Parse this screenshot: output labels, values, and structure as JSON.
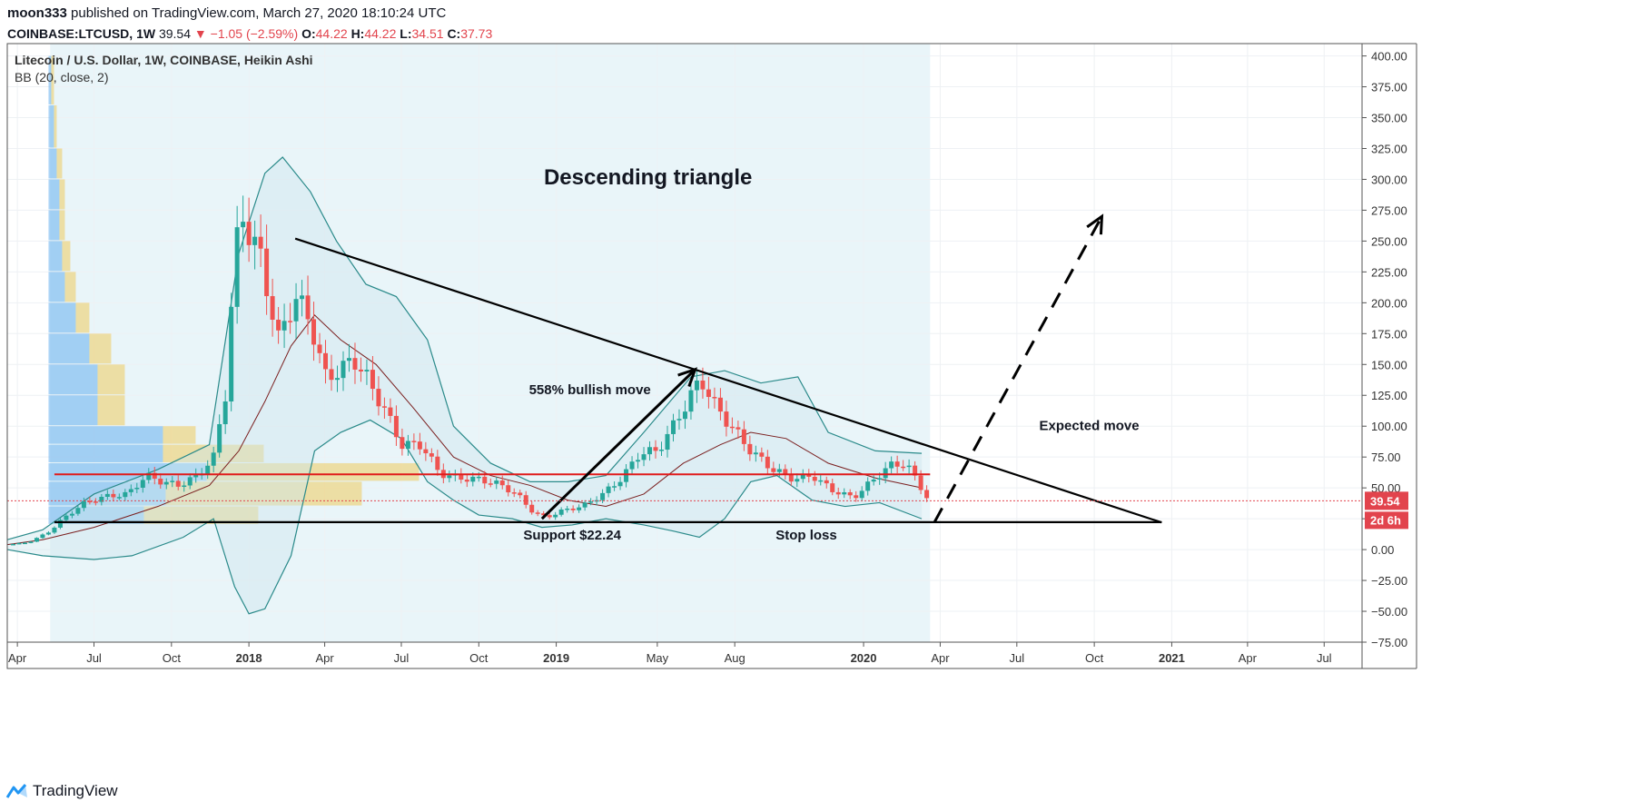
{
  "header": {
    "author": "moon333",
    "published": "published on TradingView.com, March 27, 2020 18:10:24 UTC",
    "symbol": "COINBASE:LTCUSD,",
    "interval": "1W",
    "last": "39.54",
    "change": "−1.05 (−2.59%)",
    "o_label": "O:",
    "o_val": "44.22",
    "h_label": "H:",
    "h_val": "44.22",
    "l_label": "L:",
    "l_val": "34.51",
    "c_label": "C:",
    "c_val": "37.73",
    "down_arrow": "▼"
  },
  "legend": {
    "title": "Litecoin / U.S. Dollar, 1W, COINBASE, Heikin Ashi",
    "indicator": "BB (20, close, 2)"
  },
  "footer": {
    "brand": "TradingView",
    "brand_icon": "tradingview-logo-icon"
  },
  "colors": {
    "up": "#26a69a",
    "down": "#ef5350",
    "bb_band": "#2a8a8a",
    "bb_basis": "#7a1f1f",
    "bb_fill": "#cfe6ee",
    "resistance": "#e01b1b",
    "shade": "#e3f2f8",
    "vp_blue": "#5aaaee",
    "vp_yellow": "#f0c850",
    "price_tag": "#e2444d"
  },
  "chart_data": {
    "type": "candlestick",
    "title": "Litecoin / U.S. Dollar, 1W, COINBASE, Heikin Ashi",
    "y_ticks": [
      "400.00",
      "375.00",
      "350.00",
      "325.00",
      "300.00",
      "275.00",
      "250.00",
      "225.00",
      "200.00",
      "175.00",
      "150.00",
      "125.00",
      "100.00",
      "75.00",
      "50.00",
      "25.00",
      "0.00",
      "−25.00",
      "−50.00",
      "−75.00"
    ],
    "ylim": [
      -75,
      410
    ],
    "x_ticks": [
      "Apr",
      "Jul",
      "Oct",
      "2018",
      "Apr",
      "Jul",
      "Oct",
      "2019",
      "May",
      "Aug",
      "2020",
      "Apr",
      "Jul",
      "Oct",
      "2021",
      "Apr",
      "Jul"
    ],
    "x_tick_dates": [
      "2017-04-01",
      "2017-07-01",
      "2017-10-01",
      "2018-01-01",
      "2018-04-01",
      "2018-07-01",
      "2018-10-01",
      "2019-01-01",
      "2019-05-01",
      "2019-08-01",
      "2020-01-01",
      "2020-04-01",
      "2020-07-01",
      "2020-10-01",
      "2021-01-01",
      "2021-04-01",
      "2021-07-01"
    ],
    "xlim": [
      "2017-03-20",
      "2021-08-15"
    ],
    "last_price_label": "39.54",
    "countdown_label": "2d 6h",
    "price_series": {
      "name": "LTCUSD Heikin Ashi (approximate weekly closes)",
      "points": [
        [
          "2017-03-20",
          4
        ],
        [
          "2017-04-15",
          6
        ],
        [
          "2017-05-10",
          15
        ],
        [
          "2017-05-25",
          25
        ],
        [
          "2017-06-20",
          38
        ],
        [
          "2017-07-15",
          43
        ],
        [
          "2017-08-10",
          45
        ],
        [
          "2017-09-01",
          60
        ],
        [
          "2017-09-20",
          55
        ],
        [
          "2017-10-10",
          52
        ],
        [
          "2017-11-01",
          60
        ],
        [
          "2017-11-20",
          75
        ],
        [
          "2017-12-05",
          130
        ],
        [
          "2017-12-15",
          240
        ],
        [
          "2017-12-25",
          270
        ],
        [
          "2018-01-15",
          235
        ],
        [
          "2018-02-05",
          170
        ],
        [
          "2018-02-25",
          205
        ],
        [
          "2018-03-15",
          185
        ],
        [
          "2018-04-01",
          140
        ],
        [
          "2018-04-20",
          145
        ],
        [
          "2018-05-05",
          155
        ],
        [
          "2018-05-20",
          140
        ],
        [
          "2018-06-10",
          115
        ],
        [
          "2018-07-01",
          85
        ],
        [
          "2018-07-25",
          85
        ],
        [
          "2018-08-15",
          62
        ],
        [
          "2018-09-05",
          58
        ],
        [
          "2018-10-01",
          57
        ],
        [
          "2018-10-25",
          53
        ],
        [
          "2018-11-15",
          45
        ],
        [
          "2018-12-05",
          30
        ],
        [
          "2018-12-20",
          26
        ],
        [
          "2019-01-10",
          32
        ],
        [
          "2019-02-01",
          35
        ],
        [
          "2019-02-25",
          45
        ],
        [
          "2019-03-20",
          58
        ],
        [
          "2019-04-10",
          78
        ],
        [
          "2019-05-01",
          80
        ],
        [
          "2019-05-20",
          100
        ],
        [
          "2019-06-10",
          125
        ],
        [
          "2019-06-22",
          138
        ],
        [
          "2019-07-10",
          115
        ],
        [
          "2019-07-30",
          98
        ],
        [
          "2019-08-20",
          80
        ],
        [
          "2019-09-15",
          65
        ],
        [
          "2019-10-10",
          57
        ],
        [
          "2019-11-01",
          60
        ],
        [
          "2019-11-25",
          48
        ],
        [
          "2019-12-20",
          42
        ],
        [
          "2020-01-10",
          55
        ],
        [
          "2020-02-01",
          68
        ],
        [
          "2020-02-20",
          70
        ],
        [
          "2020-03-05",
          55
        ],
        [
          "2020-03-20",
          38
        ]
      ]
    },
    "bollinger": {
      "name": "BB (20, close, 2)",
      "upper": [
        [
          "2017-03-20",
          8
        ],
        [
          "2017-05-01",
          16
        ],
        [
          "2017-07-01",
          45
        ],
        [
          "2017-09-15",
          65
        ],
        [
          "2017-11-15",
          85
        ],
        [
          "2017-12-20",
          240
        ],
        [
          "2018-01-20",
          305
        ],
        [
          "2018-02-10",
          318
        ],
        [
          "2018-03-15",
          290
        ],
        [
          "2018-04-15",
          250
        ],
        [
          "2018-05-20",
          215
        ],
        [
          "2018-06-25",
          205
        ],
        [
          "2018-08-01",
          170
        ],
        [
          "2018-09-01",
          100
        ],
        [
          "2018-10-15",
          70
        ],
        [
          "2018-12-01",
          55
        ],
        [
          "2019-01-15",
          55
        ],
        [
          "2019-03-01",
          60
        ],
        [
          "2019-04-15",
          95
        ],
        [
          "2019-06-10",
          140
        ],
        [
          "2019-07-20",
          145
        ],
        [
          "2019-09-01",
          135
        ],
        [
          "2019-10-15",
          140
        ],
        [
          "2019-11-20",
          95
        ],
        [
          "2020-01-15",
          80
        ],
        [
          "2020-03-10",
          78
        ]
      ],
      "lower": [
        [
          "2017-03-20",
          0
        ],
        [
          "2017-05-01",
          -5
        ],
        [
          "2017-07-01",
          -8
        ],
        [
          "2017-08-15",
          -5
        ],
        [
          "2017-10-15",
          10
        ],
        [
          "2017-11-20",
          25
        ],
        [
          "2017-12-15",
          -30
        ],
        [
          "2018-01-01",
          -52
        ],
        [
          "2018-01-20",
          -48
        ],
        [
          "2018-02-20",
          -5
        ],
        [
          "2018-03-20",
          80
        ],
        [
          "2018-04-20",
          95
        ],
        [
          "2018-05-25",
          105
        ],
        [
          "2018-07-01",
          90
        ],
        [
          "2018-08-01",
          55
        ],
        [
          "2018-09-01",
          40
        ],
        [
          "2018-10-01",
          28
        ],
        [
          "2018-11-10",
          25
        ],
        [
          "2018-12-15",
          18
        ],
        [
          "2019-01-20",
          20
        ],
        [
          "2019-03-01",
          25
        ],
        [
          "2019-04-15",
          20
        ],
        [
          "2019-05-20",
          15
        ],
        [
          "2019-06-20",
          10
        ],
        [
          "2019-07-20",
          25
        ],
        [
          "2019-08-20",
          55
        ],
        [
          "2019-09-20",
          60
        ],
        [
          "2019-11-01",
          40
        ],
        [
          "2019-12-10",
          35
        ],
        [
          "2020-01-20",
          38
        ],
        [
          "2020-03-10",
          25
        ]
      ],
      "basis": [
        [
          "2017-03-20",
          4
        ],
        [
          "2017-05-01",
          8
        ],
        [
          "2017-07-01",
          18
        ],
        [
          "2017-09-15",
          35
        ],
        [
          "2017-11-15",
          52
        ],
        [
          "2017-12-20",
          80
        ],
        [
          "2018-01-20",
          120
        ],
        [
          "2018-02-20",
          165
        ],
        [
          "2018-03-20",
          190
        ],
        [
          "2018-04-20",
          170
        ],
        [
          "2018-06-01",
          150
        ],
        [
          "2018-07-15",
          115
        ],
        [
          "2018-09-01",
          75
        ],
        [
          "2018-10-15",
          60
        ],
        [
          "2018-12-01",
          52
        ],
        [
          "2019-01-15",
          40
        ],
        [
          "2019-03-01",
          35
        ],
        [
          "2019-04-15",
          45
        ],
        [
          "2019-06-01",
          70
        ],
        [
          "2019-07-15",
          85
        ],
        [
          "2019-08-20",
          95
        ],
        [
          "2019-10-01",
          90
        ],
        [
          "2019-11-20",
          70
        ],
        [
          "2020-01-15",
          58
        ],
        [
          "2020-03-10",
          50
        ]
      ]
    },
    "volume_profile": {
      "name": "Volume profile (relative widths)",
      "rows": [
        {
          "y_from": 20,
          "y_to": 35,
          "blue": 0.35,
          "yellow": 0.42
        },
        {
          "y_from": 35,
          "y_to": 55,
          "blue": 0.43,
          "yellow": 0.72
        },
        {
          "y_from": 55,
          "y_to": 70,
          "blue": 0.58,
          "yellow": 0.78
        },
        {
          "y_from": 70,
          "y_to": 85,
          "blue": 0.42,
          "yellow": 0.37
        },
        {
          "y_from": 85,
          "y_to": 100,
          "blue": 0.42,
          "yellow": 0.12
        },
        {
          "y_from": 100,
          "y_to": 125,
          "blue": 0.18,
          "yellow": 0.1
        },
        {
          "y_from": 125,
          "y_to": 150,
          "blue": 0.18,
          "yellow": 0.1
        },
        {
          "y_from": 150,
          "y_to": 175,
          "blue": 0.15,
          "yellow": 0.08
        },
        {
          "y_from": 175,
          "y_to": 200,
          "blue": 0.1,
          "yellow": 0.05
        },
        {
          "y_from": 200,
          "y_to": 225,
          "blue": 0.06,
          "yellow": 0.04
        },
        {
          "y_from": 225,
          "y_to": 250,
          "blue": 0.05,
          "yellow": 0.03
        },
        {
          "y_from": 250,
          "y_to": 275,
          "blue": 0.04,
          "yellow": 0.02
        },
        {
          "y_from": 275,
          "y_to": 300,
          "blue": 0.04,
          "yellow": 0.02
        },
        {
          "y_from": 300,
          "y_to": 325,
          "blue": 0.03,
          "yellow": 0.02
        },
        {
          "y_from": 325,
          "y_to": 360,
          "blue": 0.02,
          "yellow": 0.01
        },
        {
          "y_from": 360,
          "y_to": 400,
          "blue": 0.01,
          "yellow": 0.01
        }
      ]
    },
    "drawings": {
      "descending_trendline": [
        [
          "2018-02-25",
          252
        ],
        [
          "2020-12-20",
          22
        ]
      ],
      "support_line": [
        [
          "2017-05-15",
          22.24
        ],
        [
          "2020-12-20",
          22.24
        ]
      ],
      "resistance_line": [
        [
          "2017-05-15",
          61
        ],
        [
          "2020-03-20",
          61
        ]
      ],
      "bullish_arrow": [
        [
          "2018-12-15",
          25
        ],
        [
          "2019-06-15",
          146
        ]
      ],
      "expected_move_arrow": [
        [
          "2020-03-25",
          22
        ],
        [
          "2020-10-10",
          270
        ]
      ],
      "shaded_region": [
        [
          "2017-05-10",
          410
        ],
        [
          "2020-03-20",
          -75
        ]
      ]
    },
    "annotations": [
      {
        "text": "Descending triangle",
        "x": "2019-04-20",
        "y": 296
      },
      {
        "text": "558% bullish move",
        "x": "2019-02-10",
        "y": 126
      },
      {
        "text": "Support $22.24",
        "x": "2019-01-20",
        "y": 8
      },
      {
        "text": "Stop loss",
        "x": "2019-10-25",
        "y": 8
      },
      {
        "text": "Expected move",
        "x": "2020-09-25",
        "y": 97
      }
    ]
  }
}
